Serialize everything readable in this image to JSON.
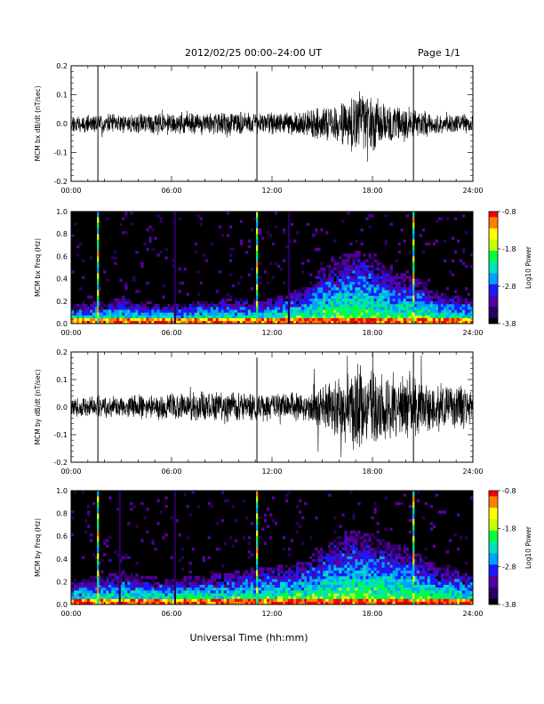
{
  "header": {
    "title": "2012/02/25  00:00–24:00 UT",
    "page": "Page 1/1"
  },
  "footer": {
    "xlabel": "Universal Time (hh:mm)"
  },
  "colors": {
    "trace": "#000000",
    "spectrogram_background": "#000000",
    "colormap": [
      "#000000",
      "#2a0060",
      "#5500a0",
      "#1a1aff",
      "#00a0ff",
      "#00e0c0",
      "#00ff40",
      "#c8ff00",
      "#ffff00",
      "#ff8000",
      "#ff0000"
    ]
  },
  "chart_data": [
    {
      "type": "line",
      "ylabel": "MCM bx dB/dt (nT/sec)",
      "xlim": [
        0,
        24
      ],
      "ylim": [
        -0.2,
        0.2
      ],
      "x_ticks": [
        "00:00",
        "06:00",
        "12:00",
        "18:00",
        "24:00"
      ],
      "y_ticks": [
        "-0.2",
        "-0.1",
        "0.0",
        "0.1",
        "0.2"
      ],
      "noise_envelope": {
        "x": [
          0,
          3,
          6,
          9,
          12,
          14,
          15,
          16,
          17,
          18,
          19,
          20,
          21,
          22,
          24
        ],
        "amplitude": [
          0.025,
          0.028,
          0.03,
          0.035,
          0.03,
          0.035,
          0.05,
          0.055,
          0.1,
          0.08,
          0.06,
          0.05,
          0.04,
          0.03,
          0.025
        ]
      },
      "spikes": [
        {
          "x": 1.6,
          "min": -0.2,
          "max": 0.2
        },
        {
          "x": 11.1,
          "min": -0.2,
          "max": 0.18
        },
        {
          "x": 20.45,
          "min": -0.2,
          "max": 0.2
        }
      ]
    },
    {
      "type": "heatmap",
      "ylabel": "MCM bx Freq (Hz)",
      "xlim": [
        0,
        24
      ],
      "ylim": [
        0,
        1.0
      ],
      "x_ticks": [
        "00:00",
        "06:00",
        "12:00",
        "18:00",
        "24:00"
      ],
      "y_ticks": [
        "0.0",
        "0.2",
        "0.4",
        "0.6",
        "0.8",
        "1.0"
      ],
      "colorbar": {
        "label": "Log10 Power",
        "range": [
          -3.8,
          -0.8
        ],
        "ticks": [
          "-0.8",
          "-1.8",
          "-2.8",
          "-3.8"
        ]
      },
      "activity_envelope": {
        "x": [
          0,
          3,
          6,
          9,
          12,
          14,
          15,
          16,
          17,
          18,
          19,
          20,
          21,
          22,
          24
        ],
        "height_hz": [
          0.15,
          0.2,
          0.15,
          0.2,
          0.2,
          0.3,
          0.45,
          0.55,
          0.6,
          0.55,
          0.45,
          0.4,
          0.35,
          0.25,
          0.2
        ]
      },
      "vertical_lines": [
        1.6,
        6.2,
        11.1,
        13.0,
        20.45
      ]
    },
    {
      "type": "line",
      "ylabel": "MCM by dB/dt (nT/sec)",
      "xlim": [
        0,
        24
      ],
      "ylim": [
        -0.2,
        0.2
      ],
      "x_ticks": [
        "00:00",
        "06:00",
        "12:00",
        "18:00",
        "24:00"
      ],
      "y_ticks": [
        "-0.2",
        "-0.1",
        "0.0",
        "0.1",
        "0.2"
      ],
      "noise_envelope": {
        "x": [
          0,
          3,
          6,
          9,
          12,
          14,
          15,
          16,
          17,
          18,
          19,
          20,
          21,
          22,
          24
        ],
        "amplitude": [
          0.03,
          0.035,
          0.04,
          0.05,
          0.04,
          0.05,
          0.07,
          0.09,
          0.14,
          0.11,
          0.1,
          0.09,
          0.08,
          0.07,
          0.06
        ]
      },
      "spikes": [
        {
          "x": 1.6,
          "min": -0.2,
          "max": 0.2
        },
        {
          "x": 11.1,
          "min": -0.2,
          "max": 0.18
        },
        {
          "x": 20.45,
          "min": -0.2,
          "max": 0.2
        }
      ]
    },
    {
      "type": "heatmap",
      "ylabel": "MCM by Freq (Hz)",
      "xlim": [
        0,
        24
      ],
      "ylim": [
        0,
        1.0
      ],
      "x_ticks": [
        "00:00",
        "06:00",
        "12:00",
        "18:00",
        "24:00"
      ],
      "y_ticks": [
        "0.0",
        "0.2",
        "0.4",
        "0.6",
        "0.8",
        "1.0"
      ],
      "colorbar": {
        "label": "Log10 Power",
        "range": [
          -3.8,
          -0.8
        ],
        "ticks": [
          "-0.8",
          "-1.8",
          "-2.8",
          "-3.8"
        ]
      },
      "activity_envelope": {
        "x": [
          0,
          3,
          6,
          9,
          12,
          14,
          15,
          16,
          17,
          18,
          19,
          20,
          21,
          22,
          24
        ],
        "height_hz": [
          0.2,
          0.25,
          0.2,
          0.25,
          0.3,
          0.35,
          0.45,
          0.55,
          0.6,
          0.55,
          0.5,
          0.45,
          0.4,
          0.3,
          0.25
        ]
      },
      "vertical_lines": [
        1.6,
        2.9,
        6.2,
        11.1,
        20.45
      ]
    }
  ]
}
